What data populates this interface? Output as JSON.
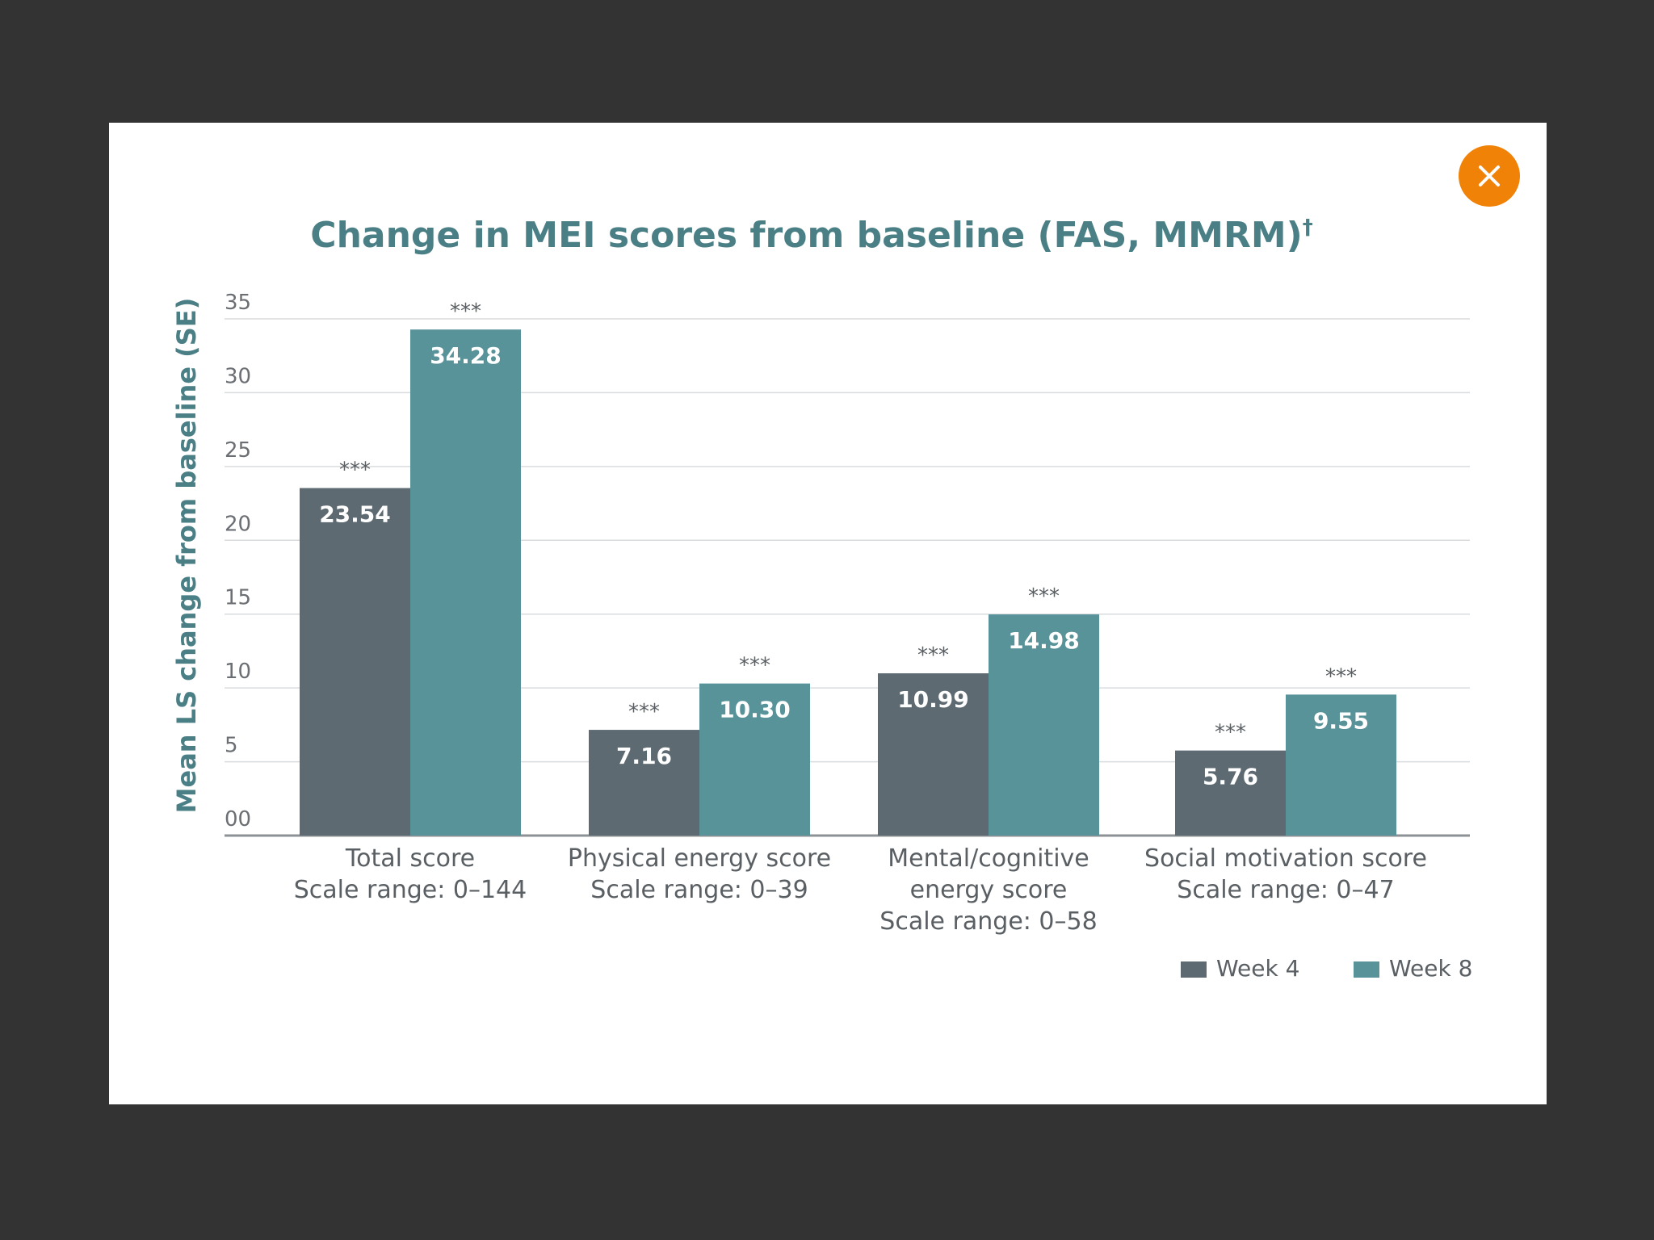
{
  "close_icon": "close-icon",
  "colors": {
    "background": "#333333",
    "panel": "#ffffff",
    "close_button": "#f08208",
    "title": "#4a7f86",
    "week4": "#5d6a71",
    "week8": "#58939a",
    "gridline": "#d9dcde",
    "axis": "#8c9296"
  },
  "chart_data": {
    "type": "bar",
    "title": "Change in MEI scores from baseline (FAS, MMRM)",
    "title_mark": "†",
    "ylabel": "Mean LS change from baseline (SE)",
    "xlabel": "",
    "ylim": [
      0,
      35
    ],
    "yticks": [
      "00",
      "5",
      "10",
      "15",
      "20",
      "25",
      "30",
      "35"
    ],
    "grid": true,
    "legend_position": "bottom-right",
    "categories": [
      [
        "Total score",
        "Scale range: 0–144"
      ],
      [
        "Physical energy score",
        "Scale range: 0–39"
      ],
      [
        "Mental/cognitive",
        "energy score",
        "Scale range: 0–58"
      ],
      [
        "Social motivation score",
        "Scale range: 0–47"
      ]
    ],
    "series": [
      {
        "name": "Week 4",
        "values": [
          23.54,
          7.16,
          10.99,
          5.76
        ],
        "labels": [
          "23.54",
          "7.16",
          "10.99",
          "5.76"
        ],
        "significance": [
          "***",
          "***",
          "***",
          "***"
        ]
      },
      {
        "name": "Week 8",
        "values": [
          34.28,
          10.3,
          14.98,
          9.55
        ],
        "labels": [
          "34.28",
          "10.30",
          "14.98",
          "9.55"
        ],
        "significance": [
          "***",
          "***",
          "***",
          "***"
        ]
      }
    ]
  }
}
